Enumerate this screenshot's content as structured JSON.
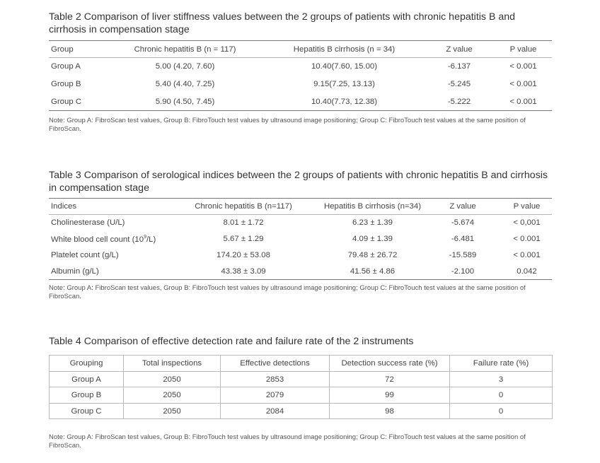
{
  "table2": {
    "caption": "Table 2 Comparison of liver stiffness values between the 2 groups of patients with chronic hepatitis B and cirrhosis in compensation stage",
    "headers": [
      "Group",
      "Chronic hepatitis B (n = 117)",
      "Hepatitis B cirrhosis (n = 34)",
      "Z value",
      "P value"
    ],
    "rows": [
      [
        "Group A",
        "5.00 (4.20, 7.60)",
        "10.40(7.60, 15.00)",
        "-6.137",
        "< 0.001"
      ],
      [
        "Group B",
        "5.40 (4.40, 7.25)",
        "9.15(7.25, 13.13)",
        "-5.245",
        "< 0.001"
      ],
      [
        "Group C",
        "5.90 (4.50, 7.45)",
        "10.40(7.73, 12.38)",
        "-5.222",
        "< 0.001"
      ]
    ],
    "note": "Note: Group A: FibroScan test values, Group B: FibroTouch test values by ultrasound image positioning; Group C: FibroTouch test values at the same position of FibroScan."
  },
  "table3": {
    "caption": "Table 3 Comparison of serological indices between the 2 groups of patients with chronic hepatitis B and cirrhosis in compensation stage",
    "headers": [
      "Indices",
      "Chronic hepatitis B (n=117)",
      "Hepatitis B cirrhosis (n=34)",
      "Z value",
      "P value"
    ],
    "rows": [
      [
        "Cholinesterase (U/L)",
        "8.01 ± 1.72",
        "6.23 ± 1.39",
        "-5.674",
        "< 0,001"
      ],
      [
        "White blood cell count (10",
        "5.67 ± 1.29",
        "4.09 ± 1.39",
        "-6.481",
        "< 0.001"
      ],
      [
        "Platelet count (g/L)",
        "174.20 ± 53.08",
        "79.48 ± 26.72",
        "-15.589",
        "< 0.001"
      ],
      [
        "Albumin (g/L)",
        "43.38 ± 3.09",
        "41.56 ± 4.86",
        "-2.100",
        "0.042"
      ]
    ],
    "wbc_sup": "9",
    "wbc_suffix": "/L)",
    "note": "Note: Group A: FibroScan test values, Group B: FibroTouch test values by ultrasound image positioning; Group C: FibroTouch test values at the same position of FibroScan."
  },
  "table4": {
    "caption": "Table 4 Comparison of effective detection rate and failure rate of the 2 instruments",
    "headers": [
      "Grouping",
      "Total inspections",
      "Effective detections",
      "Detection success rate (%)",
      "Failure rate (%)"
    ],
    "rows": [
      [
        "Group A",
        "2050",
        "2853",
        "72",
        "3"
      ],
      [
        "Group B",
        "2050",
        "2079",
        "99",
        "0"
      ],
      [
        "Group C",
        "2050",
        "2084",
        "98",
        "0"
      ]
    ],
    "note": "Note: Group A: FibroScan test values, Group B: FibroTouch test values by ultrasound image positioning; Group C: FibroTouch test values at the same position of FibroScan."
  }
}
